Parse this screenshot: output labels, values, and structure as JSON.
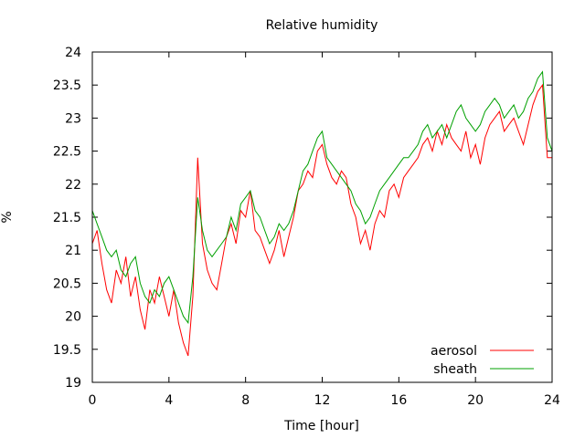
{
  "chart_data": {
    "type": "line",
    "title": "Relative humidity",
    "xlabel": "Time [hour]",
    "ylabel": "%",
    "xlim": [
      0,
      24
    ],
    "ylim": [
      19,
      24
    ],
    "xticks": [
      "0",
      "4",
      "8",
      "12",
      "16",
      "20",
      "24"
    ],
    "yticks": [
      "19",
      "19.5",
      "20",
      "20.5",
      "21",
      "21.5",
      "22",
      "22.5",
      "23",
      "23.5",
      "24"
    ],
    "grid": false,
    "legend_position": "bottom-right",
    "x": [
      0.0,
      0.25,
      0.5,
      0.75,
      1.0,
      1.25,
      1.5,
      1.75,
      2.0,
      2.25,
      2.5,
      2.75,
      3.0,
      3.25,
      3.5,
      3.75,
      4.0,
      4.25,
      4.5,
      4.75,
      5.0,
      5.25,
      5.5,
      5.75,
      6.0,
      6.25,
      6.5,
      6.75,
      7.0,
      7.25,
      7.5,
      7.75,
      8.0,
      8.25,
      8.5,
      8.75,
      9.0,
      9.25,
      9.5,
      9.75,
      10.0,
      10.25,
      10.5,
      10.75,
      11.0,
      11.25,
      11.5,
      11.75,
      12.0,
      12.25,
      12.5,
      12.75,
      13.0,
      13.25,
      13.5,
      13.75,
      14.0,
      14.25,
      14.5,
      14.75,
      15.0,
      15.25,
      15.5,
      15.75,
      16.0,
      16.25,
      16.5,
      16.75,
      17.0,
      17.25,
      17.5,
      17.75,
      18.0,
      18.25,
      18.5,
      18.75,
      19.0,
      19.25,
      19.5,
      19.75,
      20.0,
      20.25,
      20.5,
      20.75,
      21.0,
      21.25,
      21.5,
      21.75,
      22.0,
      22.25,
      22.5,
      22.75,
      23.0,
      23.25,
      23.5,
      23.75,
      24.0
    ],
    "series": [
      {
        "name": "aerosol",
        "color": "#ff0000",
        "values": [
          21.1,
          21.3,
          20.8,
          20.4,
          20.2,
          20.7,
          20.5,
          20.9,
          20.3,
          20.6,
          20.1,
          19.8,
          20.4,
          20.2,
          20.6,
          20.3,
          20.0,
          20.4,
          19.9,
          19.6,
          19.4,
          20.3,
          22.4,
          21.1,
          20.7,
          20.5,
          20.4,
          20.8,
          21.2,
          21.4,
          21.1,
          21.6,
          21.5,
          21.9,
          21.3,
          21.2,
          21.0,
          20.8,
          21.0,
          21.3,
          20.9,
          21.2,
          21.5,
          21.9,
          22.0,
          22.2,
          22.1,
          22.5,
          22.6,
          22.3,
          22.1,
          22.0,
          22.2,
          22.1,
          21.7,
          21.5,
          21.1,
          21.3,
          21.0,
          21.4,
          21.6,
          21.5,
          21.9,
          22.0,
          21.8,
          22.1,
          22.2,
          22.3,
          22.4,
          22.6,
          22.7,
          22.5,
          22.8,
          22.6,
          22.9,
          22.7,
          22.6,
          22.5,
          22.8,
          22.4,
          22.6,
          22.3,
          22.7,
          22.9,
          23.0,
          23.1,
          22.8,
          22.9,
          23.0,
          22.8,
          22.6,
          22.9,
          23.2,
          23.4,
          23.5,
          22.4,
          22.4
        ]
      },
      {
        "name": "sheath",
        "color": "#00a000",
        "values": [
          21.6,
          21.4,
          21.2,
          21.0,
          20.9,
          21.0,
          20.7,
          20.6,
          20.8,
          20.9,
          20.5,
          20.3,
          20.2,
          20.4,
          20.3,
          20.5,
          20.6,
          20.4,
          20.2,
          20.0,
          19.9,
          20.6,
          21.8,
          21.3,
          21.0,
          20.9,
          21.0,
          21.1,
          21.2,
          21.5,
          21.3,
          21.7,
          21.8,
          21.9,
          21.6,
          21.5,
          21.3,
          21.1,
          21.2,
          21.4,
          21.3,
          21.4,
          21.6,
          21.9,
          22.2,
          22.3,
          22.5,
          22.7,
          22.8,
          22.4,
          22.3,
          22.2,
          22.1,
          22.0,
          21.9,
          21.7,
          21.6,
          21.4,
          21.5,
          21.7,
          21.9,
          22.0,
          22.1,
          22.2,
          22.3,
          22.4,
          22.4,
          22.5,
          22.6,
          22.8,
          22.9,
          22.7,
          22.8,
          22.9,
          22.7,
          22.9,
          23.1,
          23.2,
          23.0,
          22.9,
          22.8,
          22.9,
          23.1,
          23.2,
          23.3,
          23.2,
          23.0,
          23.1,
          23.2,
          23.0,
          23.1,
          23.3,
          23.4,
          23.6,
          23.7,
          22.7,
          22.5
        ]
      }
    ]
  }
}
